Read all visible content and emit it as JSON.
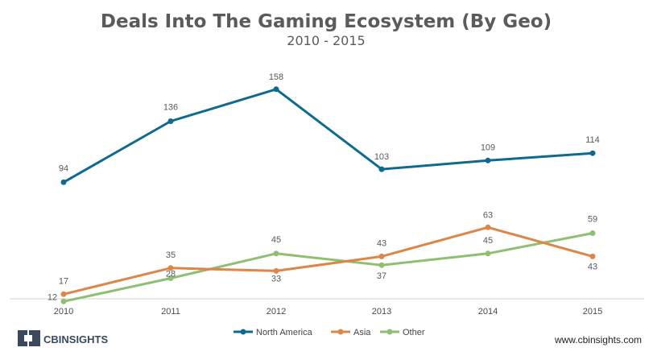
{
  "chart_data": {
    "type": "line",
    "title": "Deals Into The Gaming Ecosystem (By Geo)",
    "subtitle": "2010 - 2015",
    "categories": [
      "2010",
      "2011",
      "2012",
      "2013",
      "2014",
      "2015"
    ],
    "series": [
      {
        "name": "North America",
        "color": "#0e6a8f",
        "values": [
          94,
          136,
          158,
          103,
          109,
          114
        ]
      },
      {
        "name": "Asia",
        "color": "#de8548",
        "values": [
          17,
          35,
          33,
          43,
          63,
          43
        ]
      },
      {
        "name": "Other",
        "color": "#8fbf73",
        "values": [
          12,
          28,
          45,
          37,
          45,
          59
        ]
      }
    ],
    "xlabel": "",
    "ylabel": "",
    "ylim": [
      0,
      180
    ],
    "grid": false,
    "legend": "bottom-center"
  },
  "footer": {
    "brand": "CBINSIGHTS",
    "url": "www.cbinsights.com"
  }
}
